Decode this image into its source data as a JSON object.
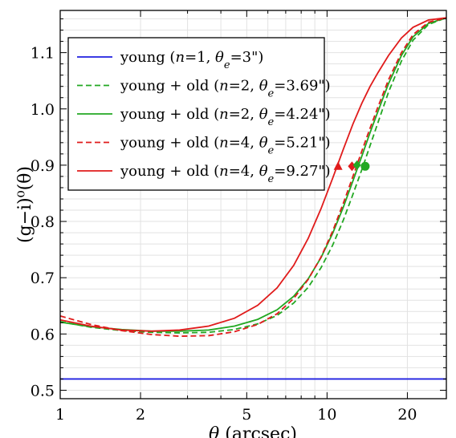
{
  "chart_data": {
    "type": "line",
    "xlabel_symbol": "θ",
    "xlabel_unit": "(arcsec)",
    "ylabel": "(g−i)⁰(θ)",
    "xscale": "log",
    "xlim": [
      1,
      28
    ],
    "ylim": [
      0.485,
      1.175
    ],
    "xticks": [
      1,
      2,
      5,
      10,
      20
    ],
    "xtick_labels": [
      "1",
      "2",
      "5",
      "10",
      "20"
    ],
    "yticks": [
      0.5,
      0.6,
      0.7,
      0.8,
      0.9,
      1.0,
      1.1
    ],
    "ytick_labels": [
      "0.5",
      "0.6",
      "0.7",
      "0.8",
      "0.9",
      "1.0",
      "1.1"
    ],
    "grid": true,
    "legend_position": "top-left",
    "series": [
      {
        "name": "young (n=1, θe=3\")",
        "legend_parts": [
          [
            "young (",
            false
          ],
          [
            "n",
            true
          ],
          [
            "=1, ",
            false
          ],
          [
            "θ",
            true
          ],
          [
            "e",
            true,
            "sub"
          ],
          [
            "=3\")",
            false
          ]
        ],
        "color": "#1f1fe0",
        "dash": "solid",
        "x": [
          1,
          28
        ],
        "y": [
          0.52,
          0.52
        ]
      },
      {
        "name": "young + old (n=2, θe=3.69\")",
        "legend_parts": [
          [
            "young + old (",
            false
          ],
          [
            "n",
            true
          ],
          [
            "=2, ",
            false
          ],
          [
            "θ",
            true
          ],
          [
            "e",
            true,
            "sub"
          ],
          [
            "=3.69\")",
            false
          ]
        ],
        "color": "#22a822",
        "dash": "dashed",
        "x": [
          1,
          1.3,
          1.7,
          2.2,
          2.8,
          3.6,
          4.5,
          5.5,
          6.5,
          7.5,
          8.5,
          9.5,
          10.5,
          11.5,
          12.5,
          13.5,
          14.5,
          15.5,
          17,
          19,
          21,
          24,
          28
        ],
        "y": [
          0.622,
          0.612,
          0.606,
          0.603,
          0.602,
          0.603,
          0.608,
          0.618,
          0.633,
          0.655,
          0.683,
          0.718,
          0.758,
          0.802,
          0.848,
          0.892,
          0.935,
          0.975,
          1.03,
          1.085,
          1.122,
          1.15,
          1.162
        ]
      },
      {
        "name": "young + old (n=2, θe=4.24\")",
        "legend_parts": [
          [
            "young + old (",
            false
          ],
          [
            "n",
            true
          ],
          [
            "=2, ",
            false
          ],
          [
            "θ",
            true
          ],
          [
            "e",
            true,
            "sub"
          ],
          [
            "=4.24\")",
            false
          ]
        ],
        "color": "#22a822",
        "dash": "solid",
        "x": [
          1,
          1.3,
          1.7,
          2.2,
          2.8,
          3.6,
          4.5,
          5.5,
          6.5,
          7.5,
          8.5,
          9.5,
          10.5,
          11.5,
          12.5,
          13.5,
          14.5,
          15.5,
          17,
          19,
          21,
          24,
          28
        ],
        "y": [
          0.621,
          0.613,
          0.608,
          0.605,
          0.605,
          0.607,
          0.614,
          0.626,
          0.643,
          0.667,
          0.698,
          0.736,
          0.779,
          0.825,
          0.872,
          0.916,
          0.958,
          0.995,
          1.045,
          1.095,
          1.128,
          1.152,
          1.162
        ]
      },
      {
        "name": "young + old (n=4, θe=5.21\")",
        "legend_parts": [
          [
            "young + old (",
            false
          ],
          [
            "n",
            true
          ],
          [
            "=4, ",
            false
          ],
          [
            "θ",
            true
          ],
          [
            "e",
            true,
            "sub"
          ],
          [
            "=5.21\")",
            false
          ]
        ],
        "color": "#e01b1b",
        "dash": "dashed",
        "x": [
          1,
          1.3,
          1.7,
          2.2,
          2.8,
          3.6,
          4.5,
          5.5,
          6.5,
          7.5,
          8.5,
          9.5,
          10.5,
          11.5,
          12.5,
          13.5,
          14.5,
          15.5,
          17,
          19,
          21,
          24,
          28
        ],
        "y": [
          0.632,
          0.617,
          0.606,
          0.599,
          0.596,
          0.597,
          0.604,
          0.617,
          0.636,
          0.663,
          0.697,
          0.737,
          0.783,
          0.832,
          0.88,
          0.925,
          0.966,
          1.003,
          1.052,
          1.1,
          1.132,
          1.154,
          1.162
        ]
      },
      {
        "name": "young + old (n=4, θe=9.27\")",
        "legend_parts": [
          [
            "young + old (",
            false
          ],
          [
            "n",
            true
          ],
          [
            "=4, ",
            false
          ],
          [
            "θ",
            true
          ],
          [
            "e",
            true,
            "sub"
          ],
          [
            "=9.27\")",
            false
          ]
        ],
        "color": "#e01b1b",
        "dash": "solid",
        "x": [
          1,
          1.3,
          1.7,
          2.2,
          2.8,
          3.6,
          4.5,
          5.5,
          6.5,
          7.5,
          8.5,
          9.5,
          10.5,
          11.5,
          12.5,
          13.5,
          14.5,
          15.5,
          17,
          19,
          21,
          24,
          28
        ],
        "y": [
          0.625,
          0.614,
          0.607,
          0.605,
          0.607,
          0.614,
          0.628,
          0.651,
          0.682,
          0.722,
          0.77,
          0.823,
          0.877,
          0.928,
          0.973,
          1.01,
          1.04,
          1.064,
          1.095,
          1.126,
          1.145,
          1.158,
          1.162
        ]
      }
    ],
    "markers": [
      {
        "shape": "triangle",
        "color": "#e01b1b",
        "x": 11.0,
        "y": 0.898
      },
      {
        "shape": "diamond",
        "color": "#e01b1b",
        "x": 12.4,
        "y": 0.898
      },
      {
        "shape": "diamond",
        "color": "#22a822",
        "x": 12.95,
        "y": 0.9
      },
      {
        "shape": "circle",
        "color": "#22a822",
        "x": 13.9,
        "y": 0.898
      }
    ]
  }
}
